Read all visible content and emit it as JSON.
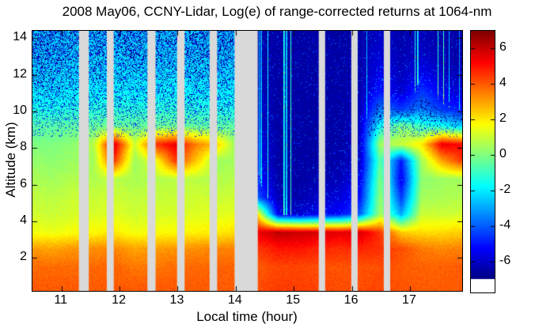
{
  "chart_data": {
    "type": "heatmap",
    "title": "2008 May06, CCNY-Lidar, Log(e) of range-corrected returns at 1064-nm",
    "xlabel": "Local time (hour)",
    "ylabel": "Altitude (km)",
    "colormap": "jet",
    "x_range": [
      10.5,
      17.9
    ],
    "y_range": [
      0.2,
      14.4
    ],
    "x_ticks": [
      11,
      12,
      13,
      14,
      15,
      16,
      17
    ],
    "y_ticks": [
      2,
      4,
      6,
      8,
      10,
      12,
      14
    ],
    "colorbar": {
      "ticks": [
        6,
        4,
        2,
        0,
        -2,
        -4,
        -6
      ],
      "clim": [
        -7,
        7
      ]
    },
    "data_gaps_hours": [
      [
        11.3,
        11.47
      ],
      [
        11.78,
        11.9
      ],
      [
        12.48,
        12.62
      ],
      [
        12.99,
        13.12
      ],
      [
        13.55,
        13.68
      ],
      [
        13.98,
        14.38
      ],
      [
        15.43,
        15.54
      ],
      [
        15.99,
        16.1
      ],
      [
        16.55,
        16.66
      ]
    ],
    "grid": {
      "times": [
        10.5,
        10.85,
        11.2,
        11.56,
        11.91,
        12.26,
        12.61,
        12.97,
        13.32,
        13.67,
        14.02,
        14.38,
        14.73,
        15.08,
        15.43,
        15.79,
        16.14,
        16.49,
        16.85,
        17.2,
        17.55,
        17.9
      ],
      "altitudes_km": [
        0.5,
        1.5,
        2.5,
        3.4,
        4.4,
        5.3,
        6.3,
        7.3,
        8.2,
        9.2,
        10.1,
        11.1,
        12.1,
        13.0,
        14.0
      ],
      "values": [
        [
          4.0,
          4.0,
          4.0,
          4.0,
          4.0,
          4.0,
          4.0,
          4.0,
          4.0,
          4.0,
          4.0,
          4.2,
          4.4,
          4.4,
          4.3,
          4.2,
          4.2,
          4.3,
          4.1,
          4.0,
          4.0,
          4.0
        ],
        [
          3.8,
          3.8,
          3.8,
          3.8,
          3.9,
          3.6,
          3.6,
          3.8,
          3.8,
          3.9,
          3.9,
          4.0,
          4.3,
          4.3,
          4.2,
          4.1,
          4.1,
          4.2,
          4.0,
          3.9,
          3.9,
          4.0
        ],
        [
          3.1,
          3.0,
          3.2,
          3.3,
          3.4,
          3.0,
          3.1,
          3.2,
          3.3,
          3.4,
          3.5,
          4.5,
          5.0,
          5.0,
          4.8,
          4.6,
          4.8,
          4.6,
          4.2,
          3.6,
          3.4,
          3.5
        ],
        [
          1.6,
          1.5,
          1.7,
          1.8,
          2.0,
          1.6,
          1.7,
          1.8,
          1.9,
          2.0,
          2.2,
          5.5,
          6.2,
          6.0,
          5.8,
          5.6,
          5.8,
          4.5,
          2.5,
          2.2,
          2.2,
          2.4
        ],
        [
          1.1,
          1.0,
          1.2,
          1.2,
          1.3,
          1.1,
          1.2,
          1.2,
          1.3,
          1.3,
          1.4,
          2.0,
          -5.5,
          -6.0,
          -5.5,
          -5.2,
          -4.0,
          0.5,
          -3.0,
          1.0,
          1.0,
          1.1
        ],
        [
          0.9,
          0.8,
          1.0,
          1.0,
          1.1,
          0.9,
          1.0,
          1.0,
          1.1,
          1.0,
          1.1,
          -4.0,
          -6.3,
          -6.4,
          -6.0,
          -5.8,
          -5.0,
          0.3,
          -4.5,
          0.5,
          0.6,
          0.7
        ],
        [
          0.6,
          0.5,
          0.7,
          0.7,
          0.8,
          0.6,
          0.7,
          0.8,
          0.8,
          0.7,
          0.8,
          -5.0,
          -6.4,
          -6.5,
          -6.4,
          -6.2,
          -5.5,
          0.0,
          -5.5,
          0.2,
          0.4,
          0.5
        ],
        [
          0.3,
          0.2,
          0.4,
          0.5,
          4.5,
          0.4,
          1.5,
          4.5,
          2.5,
          0.4,
          0.5,
          -5.5,
          -6.5,
          -6.5,
          -6.5,
          -6.4,
          -6.0,
          -0.5,
          -5.0,
          0.5,
          3.0,
          4.5
        ],
        [
          0.0,
          0.0,
          0.2,
          0.8,
          5.8,
          1.0,
          4.5,
          5.5,
          3.5,
          2.5,
          0.2,
          -5.5,
          -6.5,
          -6.5,
          -6.5,
          -6.5,
          -6.0,
          0.5,
          1.0,
          2.0,
          5.5,
          5.2
        ],
        [
          -0.6,
          -0.6,
          -0.5,
          -0.4,
          -0.3,
          -0.4,
          -0.3,
          -0.2,
          -0.4,
          -0.5,
          -0.5,
          -6.0,
          -6.5,
          -6.5,
          -6.5,
          -6.5,
          -6.0,
          -1.5,
          0.0,
          -1.0,
          -1.5,
          -2.5
        ],
        [
          -1.4,
          -1.5,
          -1.3,
          -1.3,
          -1.2,
          -1.3,
          -1.2,
          -1.2,
          -1.3,
          -1.4,
          -1.4,
          -6.0,
          -6.5,
          -6.5,
          -6.5,
          -6.5,
          -6.2,
          -3.5,
          -4.5,
          -3.5,
          -4.5,
          -5.0
        ],
        [
          -2.0,
          -2.1,
          -1.9,
          -1.9,
          -1.8,
          -1.9,
          -1.9,
          -1.8,
          -1.9,
          -2.0,
          -2.0,
          -6.2,
          -6.5,
          -6.5,
          -6.5,
          -6.5,
          -6.3,
          -5.0,
          -6.0,
          -4.5,
          -5.5,
          -6.0
        ],
        [
          -2.3,
          -2.4,
          -2.2,
          -2.2,
          -2.1,
          -2.2,
          -2.2,
          -2.1,
          -2.2,
          -2.3,
          -2.3,
          -6.3,
          -6.5,
          -6.5,
          -6.5,
          -6.5,
          -6.4,
          -5.5,
          -6.2,
          -5.5,
          -6.0,
          -6.3
        ],
        [
          -2.5,
          -2.5,
          -2.4,
          -2.4,
          -2.3,
          -2.4,
          -2.4,
          -2.3,
          -2.4,
          -2.5,
          -2.5,
          -6.4,
          -6.5,
          -6.5,
          -6.5,
          -6.5,
          -6.4,
          -5.8,
          -6.3,
          -6.0,
          -6.3,
          -6.5
        ],
        [
          -2.6,
          -2.6,
          -2.5,
          -2.5,
          -2.4,
          -2.5,
          -2.5,
          -2.4,
          -2.5,
          -2.6,
          -2.6,
          -6.4,
          -6.5,
          -6.5,
          -6.5,
          -6.5,
          -6.5,
          -6.0,
          -6.4,
          -6.2,
          -6.4,
          -6.5
        ]
      ]
    },
    "gap_color": "#d9d9d9",
    "frame_color": "#000000"
  }
}
